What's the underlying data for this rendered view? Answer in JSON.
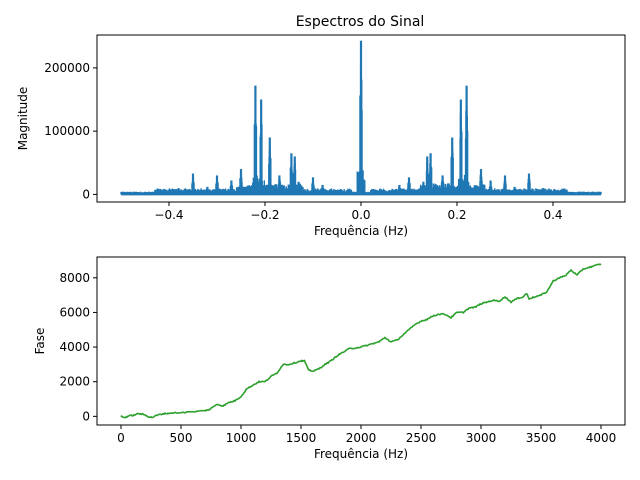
{
  "figure": {
    "title": "Espectros do Sinal"
  },
  "chart_data": [
    {
      "type": "line",
      "title": "Espectros do Sinal",
      "xlabel": "Frequência (Hz)",
      "ylabel": "Magnitude",
      "xlim": [
        -0.55,
        0.55
      ],
      "ylim": [
        -12000,
        252000
      ],
      "xticks": [
        -0.4,
        -0.2,
        0.0,
        0.2,
        0.4
      ],
      "xtick_labels": [
        "−0.4",
        "−0.2",
        "0.0",
        "0.2",
        "0.4"
      ],
      "yticks": [
        0,
        100000,
        200000
      ],
      "ytick_labels": [
        "0",
        "100000",
        "200000"
      ],
      "grid": false,
      "series": [
        {
          "color": "#1f77b4",
          "baseline": 2000,
          "x_range": [
            -0.5,
            0.5
          ],
          "peaks": [
            {
              "x": 0.0,
              "y": 243000
            },
            {
              "x": -0.22,
              "y": 172000
            },
            {
              "x": 0.22,
              "y": 172000
            },
            {
              "x": -0.208,
              "y": 150000
            },
            {
              "x": 0.208,
              "y": 150000
            },
            {
              "x": -0.19,
              "y": 90000
            },
            {
              "x": 0.19,
              "y": 90000
            },
            {
              "x": -0.25,
              "y": 40000
            },
            {
              "x": 0.25,
              "y": 40000
            },
            {
              "x": -0.145,
              "y": 65000
            },
            {
              "x": 0.145,
              "y": 65000
            },
            {
              "x": -0.138,
              "y": 60000
            },
            {
              "x": 0.138,
              "y": 60000
            },
            {
              "x": -0.13,
              "y": 20000
            },
            {
              "x": 0.13,
              "y": 20000
            },
            {
              "x": -0.17,
              "y": 30000
            },
            {
              "x": 0.17,
              "y": 30000
            },
            {
              "x": -0.35,
              "y": 33000
            },
            {
              "x": 0.35,
              "y": 33000
            },
            {
              "x": -0.3,
              "y": 30000
            },
            {
              "x": 0.3,
              "y": 30000
            },
            {
              "x": -0.27,
              "y": 22000
            },
            {
              "x": 0.27,
              "y": 22000
            },
            {
              "x": -0.1,
              "y": 27000
            },
            {
              "x": 0.1,
              "y": 27000
            },
            {
              "x": -0.08,
              "y": 15000
            },
            {
              "x": 0.08,
              "y": 15000
            },
            {
              "x": -0.32,
              "y": 12000
            },
            {
              "x": 0.32,
              "y": 12000
            },
            {
              "x": -0.38,
              "y": 10000
            },
            {
              "x": 0.38,
              "y": 10000
            },
            {
              "x": -0.42,
              "y": 8000
            },
            {
              "x": 0.42,
              "y": 8000
            }
          ]
        }
      ]
    },
    {
      "type": "line",
      "title": "",
      "xlabel": "Frequência (Hz)",
      "ylabel": "Fase",
      "xlim": [
        -200,
        4200
      ],
      "ylim": [
        -500,
        9200
      ],
      "xticks": [
        0,
        500,
        1000,
        1500,
        2000,
        2500,
        3000,
        3500,
        4000
      ],
      "xtick_labels": [
        "0",
        "500",
        "1000",
        "1500",
        "2000",
        "2500",
        "3000",
        "3500",
        "4000"
      ],
      "yticks": [
        0,
        2000,
        4000,
        6000,
        8000
      ],
      "ytick_labels": [
        "0",
        "2000",
        "4000",
        "6000",
        "8000"
      ],
      "grid": false,
      "series": [
        {
          "color": "#2ca02c",
          "x": [
            0,
            30,
            60,
            100,
            150,
            190,
            230,
            260,
            300,
            350,
            400,
            500,
            600,
            700,
            740,
            800,
            850,
            900,
            950,
            1000,
            1050,
            1100,
            1150,
            1200,
            1250,
            1300,
            1350,
            1400,
            1450,
            1500,
            1530,
            1560,
            1600,
            1650,
            1700,
            1750,
            1800,
            1850,
            1900,
            1950,
            2000,
            2050,
            2100,
            2150,
            2200,
            2250,
            2300,
            2350,
            2400,
            2450,
            2500,
            2550,
            2600,
            2650,
            2700,
            2750,
            2800,
            2850,
            2900,
            2950,
            3000,
            3050,
            3100,
            3150,
            3200,
            3250,
            3300,
            3350,
            3380,
            3400,
            3450,
            3500,
            3550,
            3600,
            3650,
            3700,
            3750,
            3800,
            3850,
            3900,
            3950,
            4000
          ],
          "y": [
            0,
            -80,
            20,
            60,
            160,
            100,
            -20,
            -60,
            60,
            150,
            180,
            220,
            260,
            330,
            400,
            700,
            600,
            800,
            900,
            1150,
            1600,
            1800,
            2000,
            2000,
            2300,
            2500,
            3000,
            3000,
            3100,
            3200,
            3200,
            2700,
            2600,
            2750,
            3000,
            3200,
            3500,
            3700,
            3900,
            3950,
            4000,
            4100,
            4200,
            4300,
            4550,
            4300,
            4400,
            4700,
            5000,
            5300,
            5500,
            5600,
            5800,
            5900,
            5900,
            5700,
            6000,
            6000,
            6250,
            6300,
            6500,
            6600,
            6700,
            6650,
            6900,
            6600,
            6800,
            6900,
            7100,
            6800,
            6900,
            7000,
            7200,
            7800,
            8000,
            8100,
            8450,
            8150,
            8500,
            8600,
            8700,
            8800
          ]
        }
      ]
    }
  ]
}
